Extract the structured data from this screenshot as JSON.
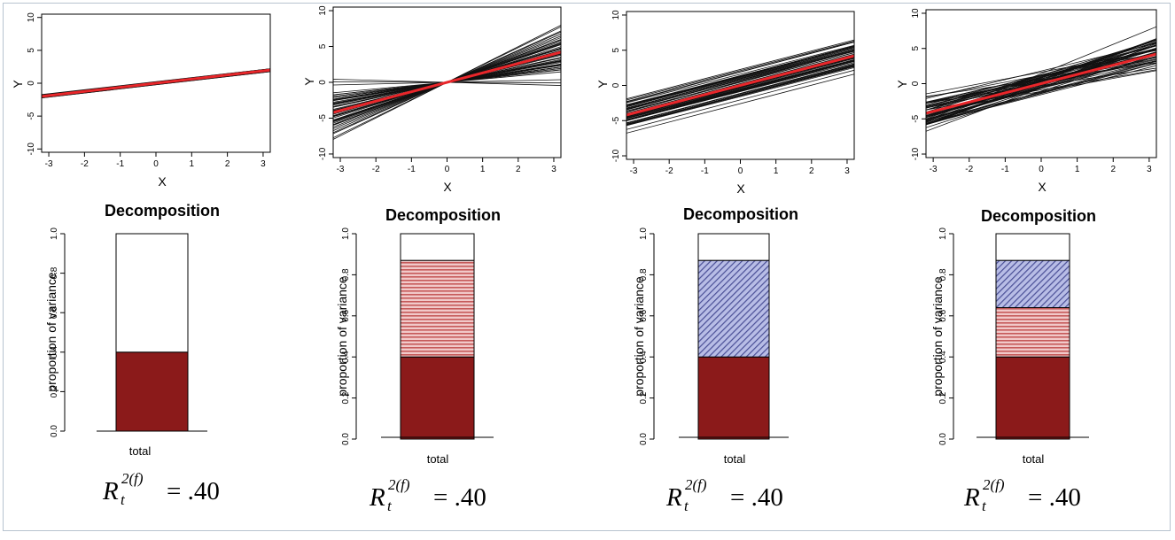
{
  "colors": {
    "line": "#111111",
    "mean_line": "#e8262a",
    "fixed_fill": "#8b1a1a",
    "random_slope_fill": "#f1c9c9",
    "random_slope_stripe": "#c65a5a",
    "random_intercept_fill": "#b8bde6",
    "random_intercept_stripe": "#4a4f96",
    "background": "#ffffff"
  },
  "chart_data": [
    {
      "type": "line",
      "panel": 1,
      "xlabel": "X",
      "ylabel": "Y",
      "xlim": [
        -3.2,
        3.2
      ],
      "ylim": [
        -10.5,
        10.5
      ],
      "xticks": [
        "-3",
        "-2",
        "-1",
        "0",
        "1",
        "2",
        "3"
      ],
      "yticks": [
        "-10",
        "-5",
        "0",
        "5",
        "10"
      ],
      "mean_line": {
        "x": [
          -3.2,
          3.2
        ],
        "y": [
          -2.0,
          2.0
        ]
      },
      "group_lines_description": "many nearly identical black lines along the red line",
      "intercept_spread": 0.3,
      "slope_spread": 0.02
    },
    {
      "type": "line",
      "panel": 2,
      "xlabel": "X",
      "ylabel": "Y",
      "xlim": [
        -3.2,
        3.2
      ],
      "ylim": [
        -10.5,
        10.5
      ],
      "xticks": [
        "-3",
        "-2",
        "-1",
        "0",
        "1",
        "2",
        "3"
      ],
      "yticks": [
        "-10",
        "-5",
        "0",
        "5",
        "10"
      ],
      "mean_line": {
        "x": [
          -3.2,
          3.2
        ],
        "y": [
          -4.2,
          4.2
        ]
      },
      "intercept_spread": 0.0,
      "slope_spread": 1.6
    },
    {
      "type": "line",
      "panel": 3,
      "xlabel": "X",
      "ylabel": "Y",
      "xlim": [
        -3.2,
        3.2
      ],
      "ylim": [
        -10.5,
        10.5
      ],
      "xticks": [
        "-3",
        "-2",
        "-1",
        "0",
        "1",
        "2",
        "3"
      ],
      "yticks": [
        "-10",
        "-5",
        "0",
        "5",
        "10"
      ],
      "mean_line": {
        "x": [
          -3.2,
          3.2
        ],
        "y": [
          -4.2,
          4.2
        ]
      },
      "intercept_spread": 3.5,
      "slope_spread": 0.05
    },
    {
      "type": "line",
      "panel": 4,
      "xlabel": "X",
      "ylabel": "Y",
      "xlim": [
        -3.2,
        3.2
      ],
      "ylim": [
        -10.5,
        10.5
      ],
      "xticks": [
        "-3",
        "-2",
        "-1",
        "0",
        "1",
        "2",
        "3"
      ],
      "yticks": [
        "-10",
        "-5",
        "0",
        "5",
        "10"
      ],
      "mean_line": {
        "x": [
          -3.2,
          3.2
        ],
        "y": [
          -4.2,
          4.2
        ]
      },
      "intercept_spread": 2.5,
      "slope_spread": 0.9
    },
    {
      "type": "bar",
      "panel": 1,
      "title": "Decomposition",
      "ylabel": "proportion of variance",
      "categories": [
        "total"
      ],
      "ylim": [
        0,
        1
      ],
      "yticks": [
        "0.0",
        "0.2",
        "0.4",
        "0.6",
        "0.8",
        "1.0"
      ],
      "segments": [
        {
          "component": "fixed",
          "value": 0.4
        },
        {
          "component": "residual",
          "value": 0.6
        }
      ],
      "formula": {
        "symbol": "R",
        "superscript": "2(f)",
        "subscript": "t",
        "value_text": "= .40"
      }
    },
    {
      "type": "bar",
      "panel": 2,
      "title": "Decomposition",
      "ylabel": "proportion of variance",
      "categories": [
        "total"
      ],
      "ylim": [
        0,
        1
      ],
      "yticks": [
        "0.0",
        "0.2",
        "0.4",
        "0.6",
        "0.8",
        "1.0"
      ],
      "segments": [
        {
          "component": "fixed",
          "value": 0.4
        },
        {
          "component": "random_slope",
          "value": 0.47
        },
        {
          "component": "residual",
          "value": 0.13
        }
      ],
      "formula": {
        "symbol": "R",
        "superscript": "2(f)",
        "subscript": "t",
        "value_text": "= .40"
      }
    },
    {
      "type": "bar",
      "panel": 3,
      "title": "Decomposition",
      "ylabel": "proportion of variance",
      "categories": [
        "total"
      ],
      "ylim": [
        0,
        1
      ],
      "yticks": [
        "0.0",
        "0.2",
        "0.4",
        "0.6",
        "0.8",
        "1.0"
      ],
      "segments": [
        {
          "component": "fixed",
          "value": 0.4
        },
        {
          "component": "random_intercept",
          "value": 0.47
        },
        {
          "component": "residual",
          "value": 0.13
        }
      ],
      "formula": {
        "symbol": "R",
        "superscript": "2(f)",
        "subscript": "t",
        "value_text": "= .40"
      }
    },
    {
      "type": "bar",
      "panel": 4,
      "title": "Decomposition",
      "ylabel": "proportion of variance",
      "categories": [
        "total"
      ],
      "ylim": [
        0,
        1
      ],
      "yticks": [
        "0.0",
        "0.2",
        "0.4",
        "0.6",
        "0.8",
        "1.0"
      ],
      "segments": [
        {
          "component": "fixed",
          "value": 0.4
        },
        {
          "component": "random_slope",
          "value": 0.24
        },
        {
          "component": "random_intercept",
          "value": 0.23
        },
        {
          "component": "residual",
          "value": 0.13
        }
      ],
      "formula": {
        "symbol": "R",
        "superscript": "2(f)",
        "subscript": "t",
        "value_text": "= .40"
      }
    }
  ]
}
